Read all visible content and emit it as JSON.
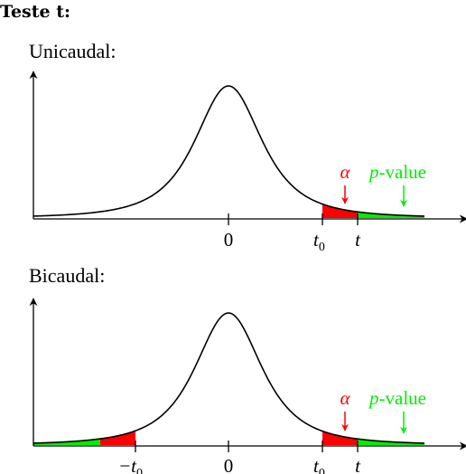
{
  "title": "Teste t:",
  "panels": [
    {
      "label": "Unicaudal:",
      "tails": "one",
      "ticks": {
        "zero": "0",
        "t0": "t",
        "t0_sub": "0",
        "t": "t"
      },
      "annotations": {
        "alpha": "α",
        "pvalue_p": "p",
        "pvalue_rest": "-value"
      }
    },
    {
      "label": "Bicaudal:",
      "tails": "two",
      "ticks": {
        "minus_t0": "−t",
        "minus_t0_sub": "0",
        "zero": "0",
        "t0": "t",
        "t0_sub": "0",
        "t": "t"
      },
      "annotations": {
        "alpha": "α",
        "pvalue_p": "p",
        "pvalue_rest": "-value"
      }
    }
  ],
  "colors": {
    "alpha": "#ff0000",
    "pvalue": "#00ee00",
    "curve": "#000000",
    "axis": "#000000"
  }
}
